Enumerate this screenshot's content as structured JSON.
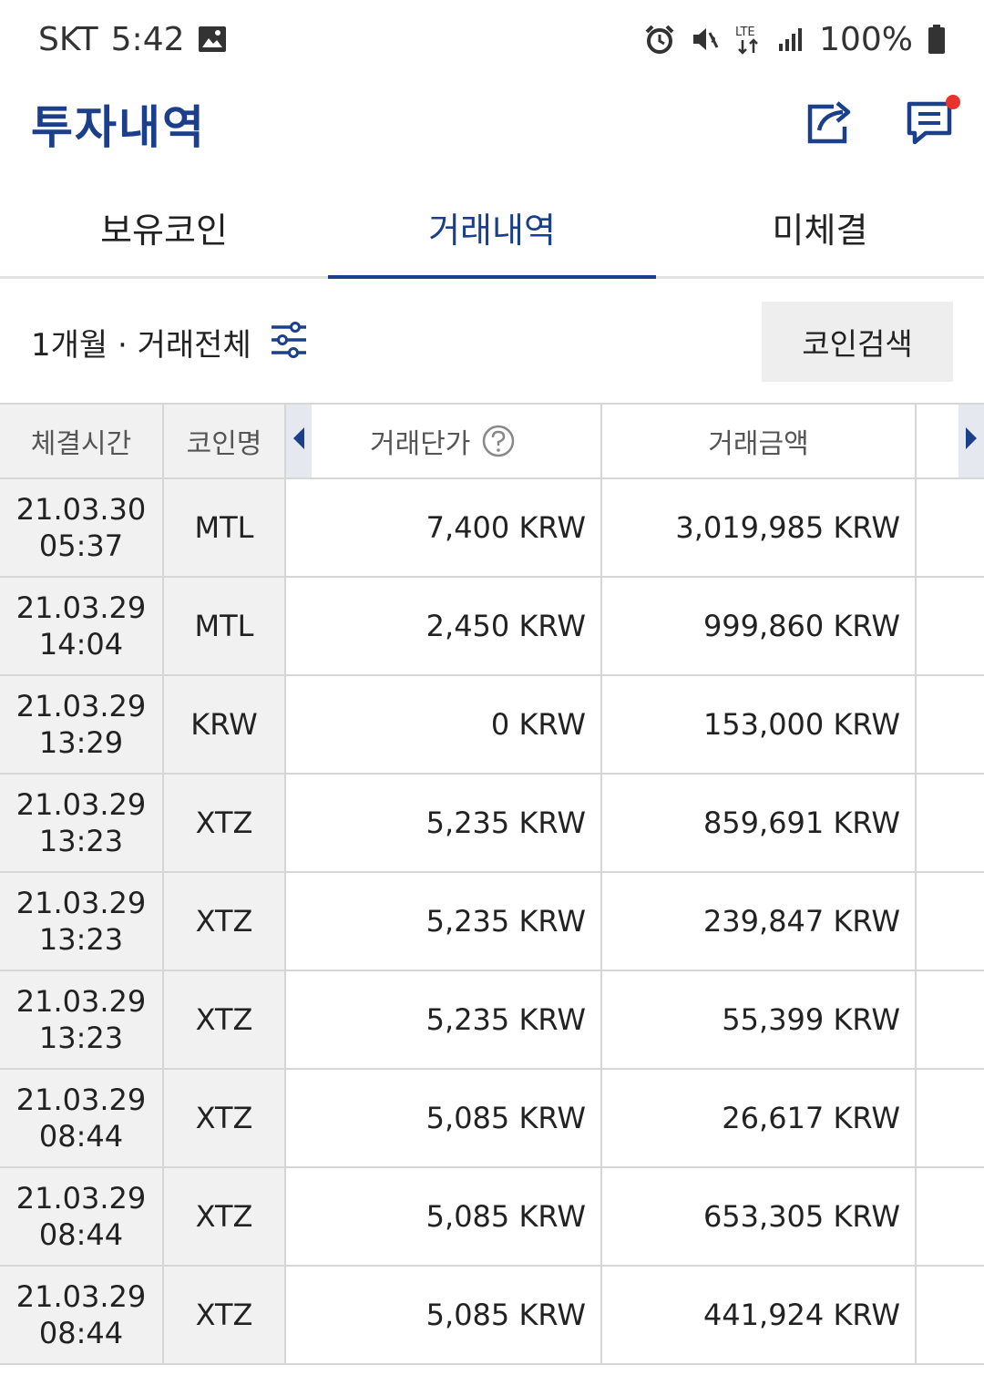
{
  "status_bar": {
    "carrier": "SKT",
    "time": "5:42",
    "battery": "100%"
  },
  "header": {
    "title": "투자내역"
  },
  "tabs": [
    {
      "label": "보유코인",
      "active": false
    },
    {
      "label": "거래내역",
      "active": true
    },
    {
      "label": "미체결",
      "active": false
    }
  ],
  "filter": {
    "label": "1개월 · 거래전체",
    "search_button": "코인검색"
  },
  "table": {
    "columns": {
      "time": "체결시간",
      "coin": "코인명",
      "price": "거래단가",
      "amount": "거래금액"
    },
    "rows": [
      {
        "date": "21.03.30",
        "time": "05:37",
        "coin": "MTL",
        "price": "7,400 KRW",
        "amount": "3,019,985 KRW"
      },
      {
        "date": "21.03.29",
        "time": "14:04",
        "coin": "MTL",
        "price": "2,450 KRW",
        "amount": "999,860 KRW"
      },
      {
        "date": "21.03.29",
        "time": "13:29",
        "coin": "KRW",
        "price": "0 KRW",
        "amount": "153,000 KRW"
      },
      {
        "date": "21.03.29",
        "time": "13:23",
        "coin": "XTZ",
        "price": "5,235 KRW",
        "amount": "859,691 KRW"
      },
      {
        "date": "21.03.29",
        "time": "13:23",
        "coin": "XTZ",
        "price": "5,235 KRW",
        "amount": "239,847 KRW"
      },
      {
        "date": "21.03.29",
        "time": "13:23",
        "coin": "XTZ",
        "price": "5,235 KRW",
        "amount": "55,399 KRW"
      },
      {
        "date": "21.03.29",
        "time": "08:44",
        "coin": "XTZ",
        "price": "5,085 KRW",
        "amount": "26,617 KRW"
      },
      {
        "date": "21.03.29",
        "time": "08:44",
        "coin": "XTZ",
        "price": "5,085 KRW",
        "amount": "653,305 KRW"
      },
      {
        "date": "21.03.29",
        "time": "08:44",
        "coin": "XTZ",
        "price": "5,085 KRW",
        "amount": "441,924 KRW"
      }
    ]
  },
  "colors": {
    "brand": "#1b3f8b",
    "notification": "#e8332c",
    "header_bg": "#f1f1f1"
  },
  "icons": [
    "image-icon",
    "alarm-icon",
    "vibrate-icon",
    "lte-icon",
    "signal-icon",
    "battery-icon",
    "share-icon",
    "chat-icon",
    "filter-icon",
    "help-icon",
    "arrow-left-icon",
    "arrow-right-icon"
  ]
}
